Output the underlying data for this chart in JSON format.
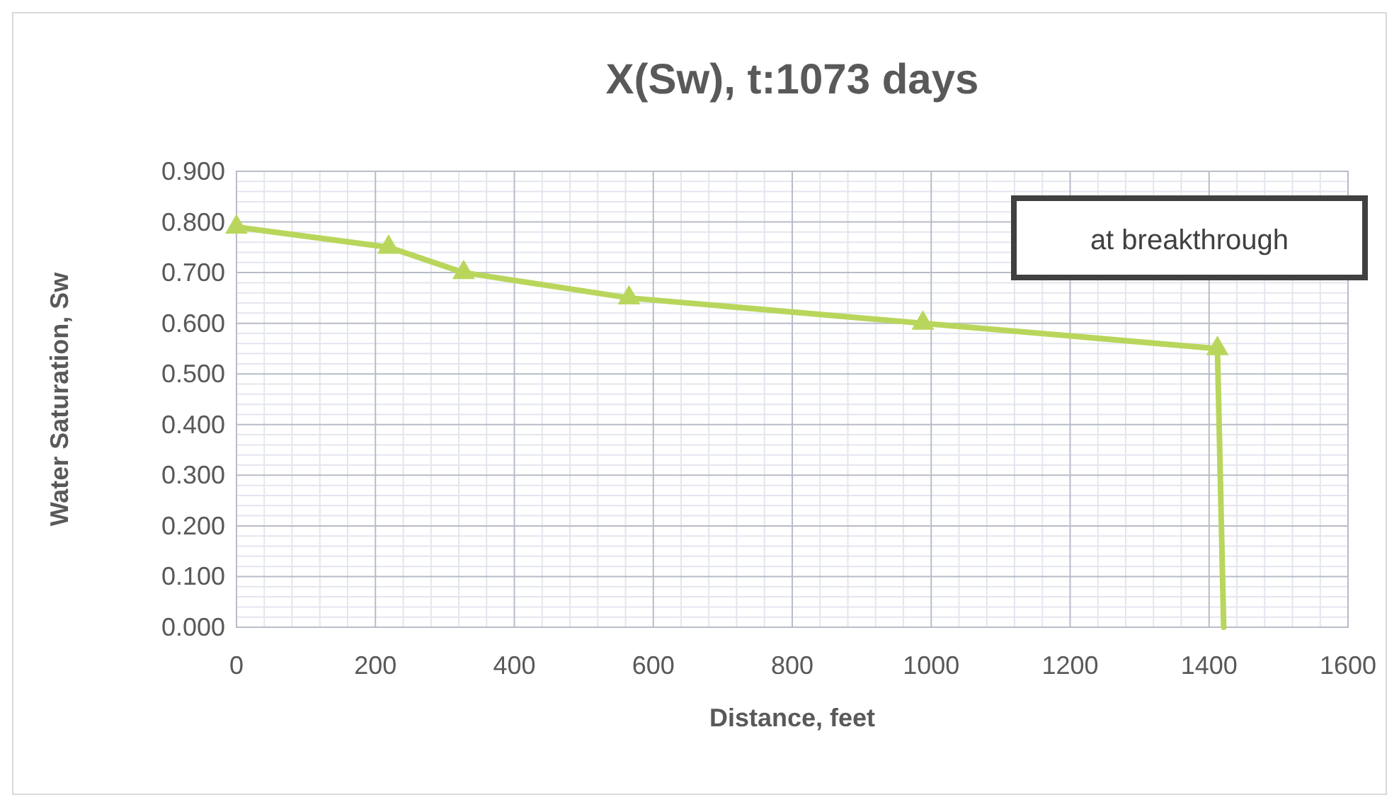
{
  "chart_data": {
    "type": "line",
    "title": "X(Sw), t:1073 days",
    "xlabel": "Distance, feet",
    "ylabel": "Water Saturation, Sw",
    "x": [
      0,
      219,
      327,
      565,
      988,
      1412
    ],
    "series": [
      {
        "color": "#b9d65c",
        "values": [
          0.79,
          0.75,
          0.7,
          0.65,
          0.6,
          0.55
        ],
        "marker": "triangle"
      },
      {
        "color": "#b9d65c",
        "x": [
          1412,
          1421
        ],
        "values": [
          0.55,
          0
        ],
        "marker": "none"
      }
    ],
    "xlim": [
      0,
      1600
    ],
    "xticks": [
      0,
      200,
      400,
      600,
      800,
      1000,
      1200,
      1400,
      1600
    ],
    "ylim": [
      0,
      0.9
    ],
    "yticks": [
      {
        "value": 0,
        "label": "0.000"
      },
      {
        "value": 0.1,
        "label": "0.100"
      },
      {
        "value": 0.2,
        "label": "0.200"
      },
      {
        "value": 0.3,
        "label": "0.300"
      },
      {
        "value": 0.4,
        "label": "0.400"
      },
      {
        "value": 0.5,
        "label": "0.500"
      },
      {
        "value": 0.6,
        "label": "0.600"
      },
      {
        "value": 0.7,
        "label": "0.700"
      },
      {
        "value": 0.8,
        "label": "0.800"
      },
      {
        "value": 0.9,
        "label": "0.900"
      }
    ],
    "grid": true,
    "annotations": [
      "at breakthrough"
    ]
  }
}
